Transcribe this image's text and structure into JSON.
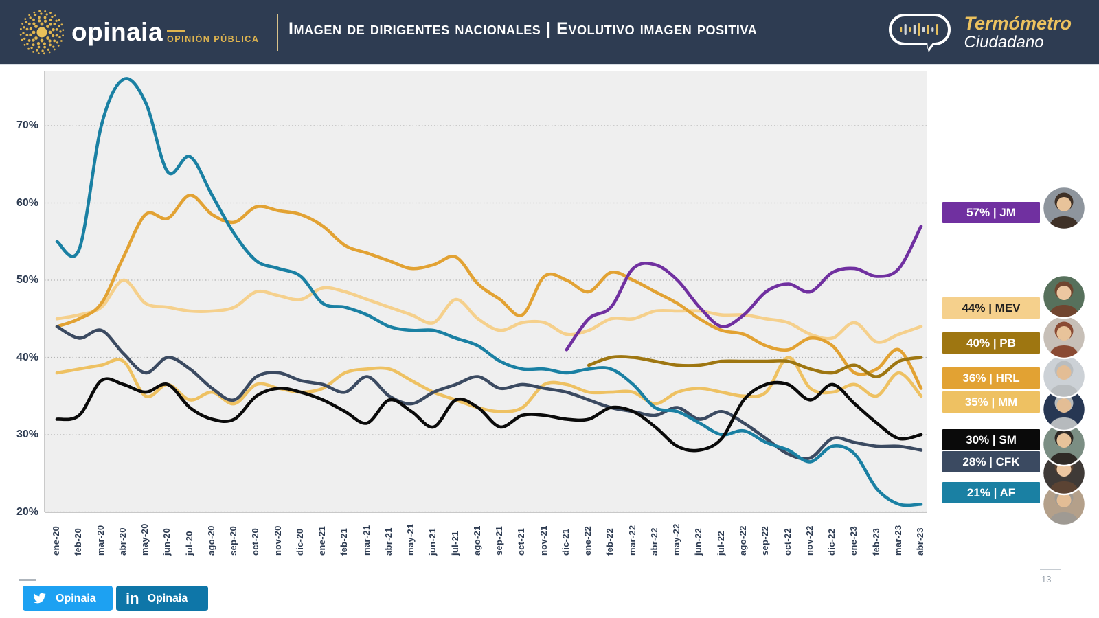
{
  "header": {
    "logo_text": "opinaia",
    "logo_sub": "OPINIÓN PÚBLICA",
    "title": "Imagen de dirigentes nacionales | Evolutivo imagen positiva",
    "brand_line1": "Termómetro",
    "brand_line2": "Ciudadano"
  },
  "footer": {
    "twitter_label": "Opinaia",
    "linkedin_label": "Opinaia",
    "page_number": "13"
  },
  "chart_data": {
    "type": "line",
    "title": "Evolutivo imagen positiva",
    "xlabel": "",
    "ylabel": "",
    "ylim": [
      20,
      77
    ],
    "grid": "horizontal-dotted",
    "legend_position": "right",
    "y_ticks": [
      {
        "value": 70,
        "label": "70%"
      },
      {
        "value": 60,
        "label": "60%"
      },
      {
        "value": 50,
        "label": "50%"
      },
      {
        "value": 40,
        "label": "40%"
      },
      {
        "value": 30,
        "label": "30%"
      },
      {
        "value": 20,
        "label": "20%"
      }
    ],
    "x": [
      "ene-20",
      "feb-20",
      "mar-20",
      "abr-20",
      "may-20",
      "jun-20",
      "jul-20",
      "ago-20",
      "sep-20",
      "oct-20",
      "nov-20",
      "dic-20",
      "ene-21",
      "feb-21",
      "mar-21",
      "abr-21",
      "may-21",
      "jun-21",
      "jul-21",
      "ago-21",
      "sep-21",
      "oct-21",
      "nov-21",
      "dic-21",
      "ene-22",
      "feb-22",
      "mar-22",
      "abr-22",
      "may-22",
      "jun-22",
      "jul-22",
      "ago-22",
      "sep-22",
      "oct-22",
      "nov-22",
      "dic-22",
      "ene-23",
      "feb-23",
      "mar-23",
      "abr-23"
    ],
    "series": [
      {
        "id": "MEV",
        "label": "44% | MEV",
        "final_value": 44,
        "color": "#f5d08c",
        "chip_text": "#1f1f1f",
        "values": [
          45,
          45.5,
          46.5,
          50,
          47,
          46.5,
          46,
          46,
          46.5,
          48.5,
          48,
          47.5,
          49,
          48.5,
          47.5,
          46.5,
          45.5,
          44.5,
          47.5,
          45,
          43.5,
          44.5,
          44.5,
          43,
          43.5,
          45,
          45,
          46,
          46,
          46,
          45.5,
          45.5,
          45,
          44.5,
          43,
          42.5,
          44.5,
          42,
          43,
          44
        ]
      },
      {
        "id": "MM",
        "label": "35% | MM",
        "final_value": 35,
        "color": "#eec162",
        "chip_text": "#ffffff",
        "values": [
          38,
          38.5,
          39,
          39.5,
          35,
          36.5,
          34.5,
          35.5,
          34,
          36.5,
          36,
          35.5,
          36,
          38,
          38.5,
          38.5,
          37,
          35.5,
          34.5,
          33.5,
          33,
          33.5,
          36.5,
          36.5,
          35.5,
          35.5,
          35.5,
          34,
          35.5,
          36,
          35.5,
          35,
          35.5,
          40,
          36,
          35.5,
          36.5,
          35,
          38,
          35
        ]
      },
      {
        "id": "HRL",
        "label": "36% | HRL",
        "final_value": 36,
        "color": "#e2a233",
        "chip_text": "#ffffff",
        "values": [
          44,
          45,
          47,
          53,
          58.5,
          58,
          61,
          58.5,
          57.5,
          59.5,
          59,
          58.5,
          57,
          54.5,
          53.5,
          52.5,
          51.5,
          52,
          53,
          49.5,
          47.5,
          45.5,
          50.5,
          50,
          48.5,
          51,
          50,
          48.5,
          47,
          45,
          43.5,
          43,
          41.5,
          41,
          42.5,
          41.5,
          38,
          38.5,
          41,
          36
        ]
      },
      {
        "id": "CFK",
        "label": "28% | CFK",
        "final_value": 28,
        "color": "#3b4a61",
        "chip_text": "#ffffff",
        "values": [
          44,
          42.5,
          43.5,
          40.5,
          38,
          40,
          38.5,
          36,
          34.5,
          37.5,
          38,
          37,
          36.5,
          35.5,
          37.5,
          35,
          34,
          35.5,
          36.5,
          37.5,
          36,
          36.5,
          36,
          35.5,
          34.5,
          33.5,
          33,
          32.5,
          33.5,
          32,
          33,
          31.5,
          29.5,
          27.5,
          27,
          29.5,
          29,
          28.5,
          28.5,
          28
        ]
      },
      {
        "id": "AF",
        "label": "21% | AF",
        "final_value": 21,
        "color": "#1a80a3",
        "chip_text": "#ffffff",
        "values": [
          55,
          54,
          70,
          76,
          73,
          64,
          66,
          61,
          56,
          52.5,
          51.5,
          50.5,
          47,
          46.5,
          45.5,
          44,
          43.5,
          43.5,
          42.5,
          41.5,
          39.5,
          38.5,
          38.5,
          38,
          38.5,
          38.5,
          36.5,
          33.5,
          33,
          31.5,
          30,
          30.5,
          29,
          28,
          26.5,
          28.5,
          27.5,
          23,
          21,
          21
        ]
      },
      {
        "id": "SM",
        "label": "30% | SM",
        "final_value": 30,
        "color": "#0a0a0a",
        "chip_text": "#ffffff",
        "values": [
          32,
          32.5,
          37,
          36.5,
          35.5,
          36.5,
          33.5,
          32,
          32,
          35,
          36,
          35.5,
          34.5,
          33,
          31.5,
          34.5,
          33,
          31,
          34.5,
          33.5,
          31,
          32.5,
          32.5,
          32,
          32,
          33.5,
          33,
          31,
          28.5,
          28,
          29.5,
          34.5,
          36.5,
          36.5,
          34.5,
          36.5,
          34,
          31.5,
          29.5,
          30
        ]
      },
      {
        "id": "PB",
        "label": "40% | PB",
        "final_value": 40,
        "color": "#9e7611",
        "chip_text": "#ffffff",
        "values": [
          null,
          null,
          null,
          null,
          null,
          null,
          null,
          null,
          null,
          null,
          null,
          null,
          null,
          null,
          null,
          null,
          null,
          null,
          null,
          null,
          null,
          null,
          null,
          null,
          39,
          40,
          40,
          39.5,
          39,
          39,
          39.5,
          39.5,
          39.5,
          39.5,
          38.5,
          38,
          39,
          37.5,
          39.5,
          40
        ]
      },
      {
        "id": "JM",
        "label": "57% | JM",
        "final_value": 57,
        "color": "#7030a0",
        "chip_text": "#ffffff",
        "values": [
          null,
          null,
          null,
          null,
          null,
          null,
          null,
          null,
          null,
          null,
          null,
          null,
          null,
          null,
          null,
          null,
          null,
          null,
          null,
          null,
          null,
          null,
          null,
          41,
          45,
          46.5,
          51.5,
          52,
          50,
          46.5,
          44,
          45.5,
          48.5,
          49.5,
          48.5,
          51,
          51.5,
          50.5,
          51.5,
          57
        ]
      }
    ]
  }
}
